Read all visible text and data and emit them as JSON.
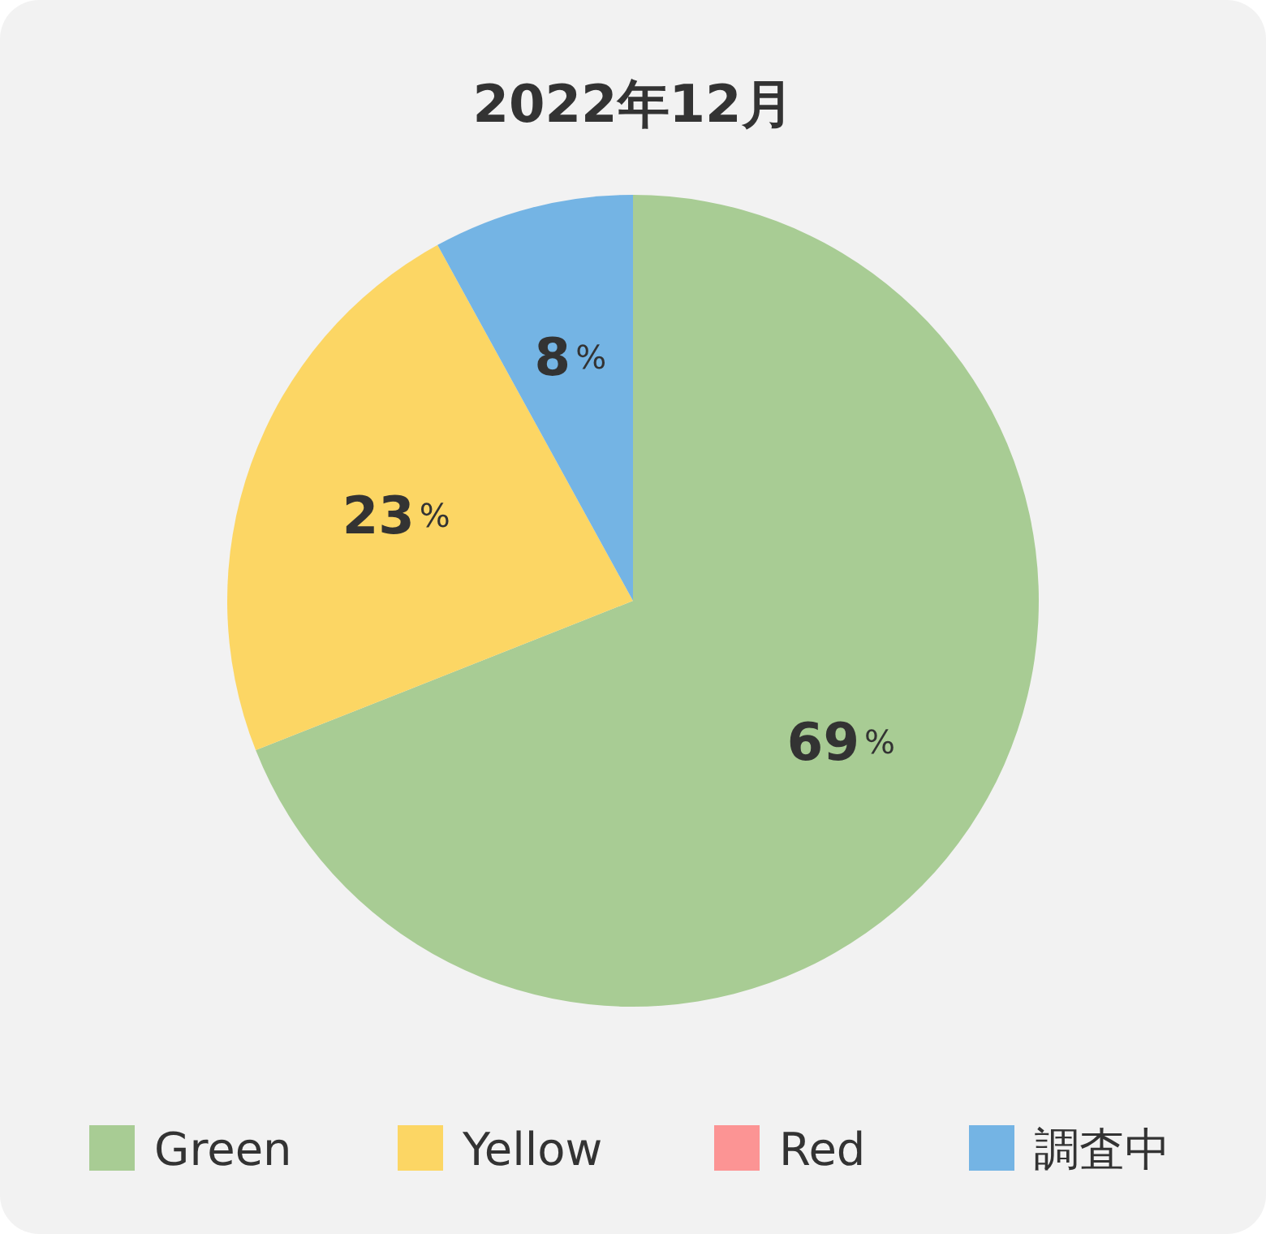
{
  "chart_data": {
    "type": "pie",
    "title": "2022年12月",
    "categories": [
      "Green",
      "Yellow",
      "Red",
      "調査中"
    ],
    "values": [
      69,
      23,
      0,
      8
    ],
    "colors": [
      "#a8cc94",
      "#fcd664",
      "#fc9494",
      "#74b4e4"
    ],
    "value_labels": [
      "69%",
      "23%",
      null,
      "8%"
    ],
    "legend": "bottom"
  }
}
